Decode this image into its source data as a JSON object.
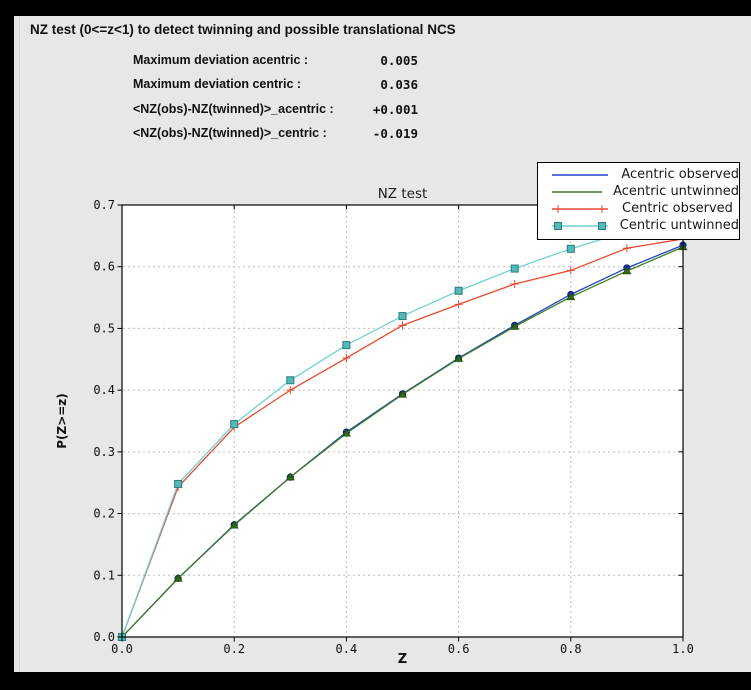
{
  "window": {
    "bg": "#e7e7e7",
    "frame": "#000000"
  },
  "header": {
    "title": "NZ test (0<=z<1) to detect twinning and possible translational NCS"
  },
  "stats": {
    "rows": [
      {
        "label": "Maximum deviation acentric :",
        "value": "0.005"
      },
      {
        "label": "Maximum deviation centric :",
        "value": "0.036"
      },
      {
        "label": "<NZ(obs)-NZ(twinned)>_acentric :",
        "value": "+0.001"
      },
      {
        "label": "<NZ(obs)-NZ(twinned)>_centric :",
        "value": "-0.019"
      }
    ]
  },
  "chart_data": {
    "type": "line",
    "title": "NZ test",
    "xlabel": "Z",
    "ylabel": "P(Z>=z)",
    "xlim": [
      0.0,
      1.0
    ],
    "ylim": [
      0.0,
      0.7
    ],
    "x_ticks": [
      "0.0",
      "0.2",
      "0.4",
      "0.6",
      "0.8",
      "1.0"
    ],
    "y_ticks": [
      "0.0",
      "0.1",
      "0.2",
      "0.3",
      "0.4",
      "0.5",
      "0.6",
      "0.7"
    ],
    "x_grid_at": [
      0.2,
      0.4,
      0.6,
      0.8
    ],
    "y_grid_at": [
      0.1,
      0.2,
      0.3,
      0.4,
      0.5,
      0.6
    ],
    "grid": "dotted",
    "legend_position": "upper right",
    "x": [
      0.0,
      0.1,
      0.2,
      0.3,
      0.4,
      0.5,
      0.6,
      0.7,
      0.8,
      0.9,
      1.0
    ],
    "series": [
      {
        "name": "Acentric observed",
        "color": "#2343cb",
        "marker": "circle",
        "marker_fill": "#1d2fae",
        "marker_edge": "#111e6e",
        "values": [
          0.0,
          0.095,
          0.182,
          0.259,
          0.332,
          0.394,
          0.452,
          0.505,
          0.555,
          0.598,
          0.635
        ]
      },
      {
        "name": "Acentric untwinned",
        "color": "#3e7c20",
        "marker": "triangle",
        "marker_fill": "#2f6a12",
        "marker_edge": "#1d4a0a",
        "values": [
          0.0,
          0.095,
          0.181,
          0.259,
          0.33,
          0.393,
          0.451,
          0.503,
          0.551,
          0.593,
          0.632
        ]
      },
      {
        "name": "Centric observed",
        "color": "#e8492f",
        "marker": "plus",
        "marker_fill": "#e8492f",
        "marker_edge": "#e8492f",
        "values": [
          0.0,
          0.243,
          0.34,
          0.4,
          0.452,
          0.505,
          0.539,
          0.572,
          0.594,
          0.63,
          0.645
        ]
      },
      {
        "name": "Centric untwinned",
        "color": "#6fd1d1",
        "marker": "square",
        "marker_fill": "#56b8b8",
        "marker_edge": "#267d7d",
        "values": [
          0.0,
          0.248,
          0.345,
          0.416,
          0.473,
          0.52,
          0.561,
          0.597,
          0.629,
          0.657,
          0.683
        ]
      }
    ]
  }
}
